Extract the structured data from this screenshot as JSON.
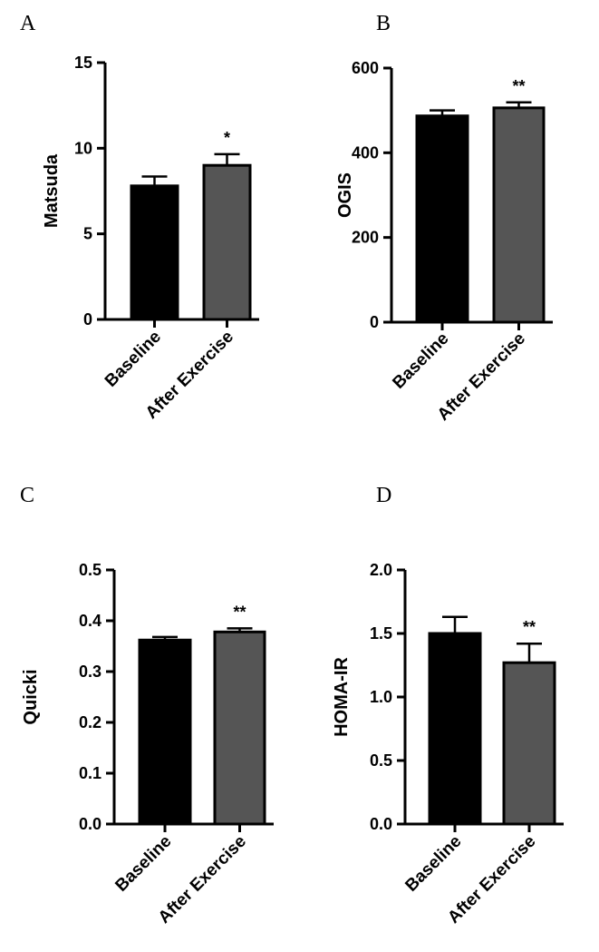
{
  "chart_data": [
    {
      "type": "bar",
      "panel": "A",
      "ylabel": "Matsuda",
      "ylim": [
        0,
        15
      ],
      "yticks": [
        "0",
        "5",
        "10",
        "15"
      ],
      "ytick_values": [
        0,
        5,
        10,
        15
      ],
      "categories": [
        "Baseline",
        "After Exercise"
      ],
      "values": [
        7.8,
        9.0
      ],
      "errors": [
        0.55,
        0.65
      ],
      "colors": [
        "#000000",
        "#555555"
      ],
      "annotations": [
        "",
        "*"
      ]
    },
    {
      "type": "bar",
      "panel": "B",
      "ylabel": "OGIS",
      "ylim": [
        0,
        600
      ],
      "yticks": [
        "0",
        "200",
        "400",
        "600"
      ],
      "ytick_values": [
        0,
        200,
        400,
        600
      ],
      "categories": [
        "Baseline",
        "After Exercise"
      ],
      "values": [
        487,
        506
      ],
      "errors": [
        13,
        13
      ],
      "colors": [
        "#000000",
        "#555555"
      ],
      "annotations": [
        "",
        "**"
      ]
    },
    {
      "type": "bar",
      "panel": "C",
      "ylabel": "Quicki",
      "ylim": [
        0,
        0.5
      ],
      "yticks": [
        "0.0",
        "0.1",
        "0.2",
        "0.3",
        "0.4",
        "0.5"
      ],
      "ytick_values": [
        0,
        0.1,
        0.2,
        0.3,
        0.4,
        0.5
      ],
      "categories": [
        "Baseline",
        "After Exercise"
      ],
      "values": [
        0.362,
        0.378
      ],
      "errors": [
        0.006,
        0.007
      ],
      "colors": [
        "#000000",
        "#555555"
      ],
      "annotations": [
        "",
        "**"
      ]
    },
    {
      "type": "bar",
      "panel": "D",
      "ylabel": "HOMA-IR",
      "ylim": [
        0,
        2.0
      ],
      "yticks": [
        "0.0",
        "0.5",
        "1.0",
        "1.5",
        "2.0"
      ],
      "ytick_values": [
        0,
        0.5,
        1.0,
        1.5,
        2.0
      ],
      "categories": [
        "Baseline",
        "After Exercise"
      ],
      "values": [
        1.5,
        1.27
      ],
      "errors": [
        0.13,
        0.15
      ],
      "colors": [
        "#000000",
        "#555555"
      ],
      "annotations": [
        "",
        "**"
      ]
    }
  ]
}
